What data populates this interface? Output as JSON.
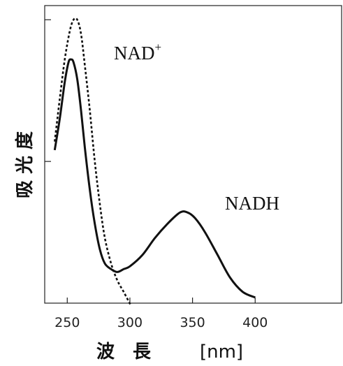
{
  "chart_data": {
    "type": "line",
    "title": "",
    "xlabel": "波　長",
    "xunit": "[nm]",
    "ylabel": "吸 光 度",
    "xlim": [
      232,
      469
    ],
    "ylim": [
      0,
      1.05
    ],
    "x_ticks": [
      250,
      300,
      350,
      400
    ],
    "x_tick_labels": [
      "250",
      "300",
      "350",
      "400"
    ],
    "y_ticks": [
      0.5,
      1.0
    ],
    "y_tick_labels": [
      "",
      ""
    ],
    "grid": false,
    "series": [
      {
        "name": "NAD⁺",
        "name_base": "NAD",
        "name_sup": "+",
        "style": "dotted",
        "x": [
          240,
          244,
          248,
          252,
          255,
          258,
          261,
          264,
          268,
          272,
          276,
          280,
          285,
          290,
          295,
          301
        ],
        "y": [
          0.57,
          0.72,
          0.86,
          0.96,
          1.0,
          1.0,
          0.95,
          0.84,
          0.68,
          0.5,
          0.35,
          0.23,
          0.14,
          0.08,
          0.04,
          -0.01
        ]
      },
      {
        "name": "NADH",
        "style": "solid",
        "x": [
          240,
          244,
          248,
          251,
          253,
          255,
          258,
          261,
          264,
          268,
          272,
          276,
          280,
          285,
          290,
          295,
          300,
          310,
          320,
          330,
          340,
          346,
          352,
          360,
          370,
          380,
          390,
          400
        ],
        "y": [
          0.54,
          0.65,
          0.78,
          0.85,
          0.86,
          0.85,
          0.79,
          0.68,
          0.55,
          0.4,
          0.28,
          0.19,
          0.14,
          0.12,
          0.11,
          0.12,
          0.13,
          0.17,
          0.23,
          0.28,
          0.32,
          0.32,
          0.3,
          0.25,
          0.17,
          0.09,
          0.04,
          0.02
        ]
      }
    ]
  }
}
